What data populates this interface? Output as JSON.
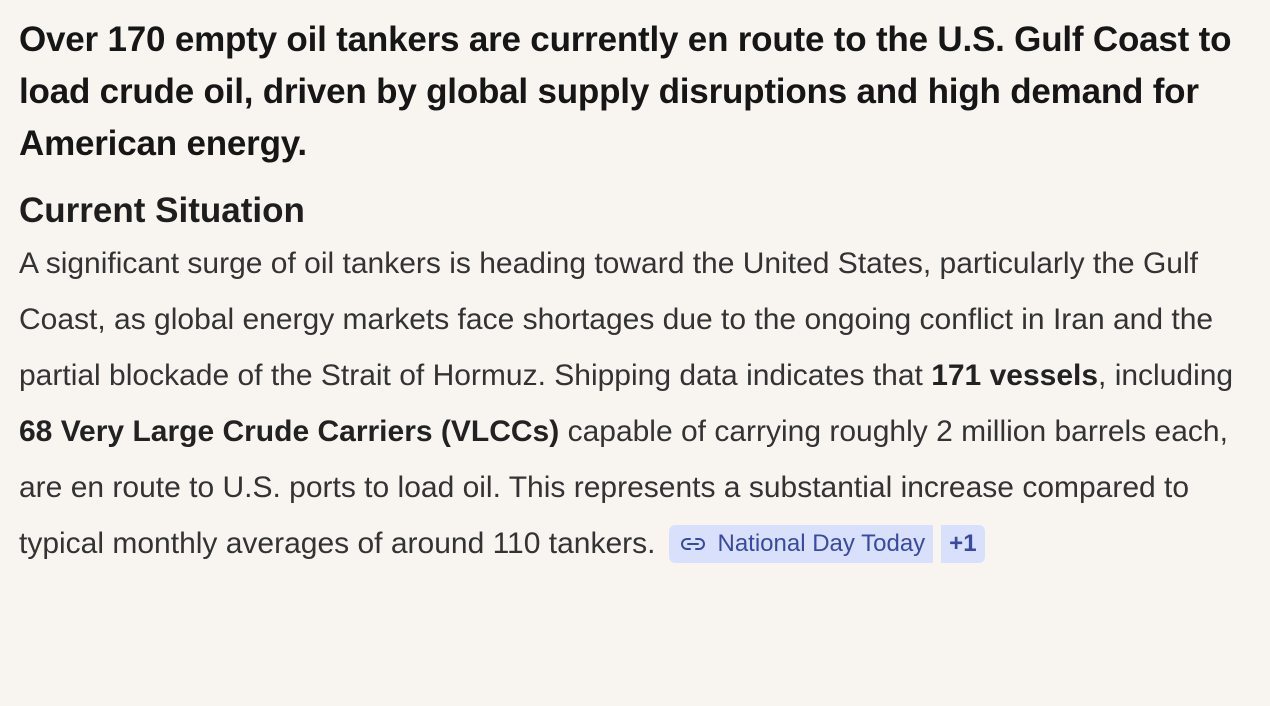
{
  "headline": "Over 170 empty oil tankers are currently en route to the U.S. Gulf Coast to load crude oil, driven by global supply disruptions and high demand for American energy.",
  "section_title": "Current Situation",
  "paragraph": {
    "t1": "A significant surge of oil tankers is heading toward the United States, particularly the Gulf Coast, as global energy markets face shortages due to the ongoing conflict in Iran and the partial blockade of the Strait of Hormuz. Shipping data indicates that ",
    "b1": "171 vessels",
    "t2": ", including ",
    "b2": "68 Very Large Crude Carriers (VLCCs)",
    "t3": " capable of carrying roughly 2 million barrels each, are en route to U.S. ports to load oil. This represents a substantial increase compared to typical monthly averages of around 110 tankers."
  },
  "citation": {
    "icon": "link-icon",
    "label": "National Day Today",
    "more": "+1"
  }
}
